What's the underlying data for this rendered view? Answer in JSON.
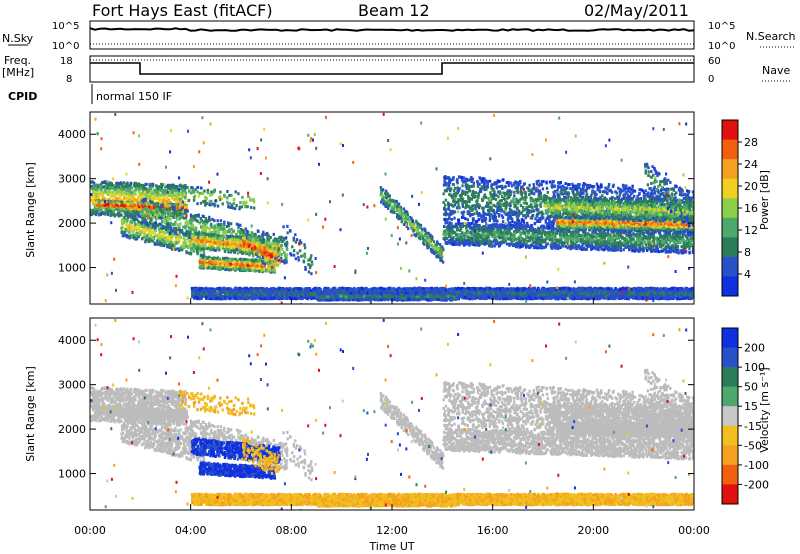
{
  "header": {
    "station": "Fort Hays East (fitACF)",
    "beam": "Beam 12",
    "date": "02/May/2011"
  },
  "panels": {
    "nsky_label": "N.Sky",
    "nsky_ticks": [
      "10^5",
      "10^0"
    ],
    "nsearch_label": "N.Search",
    "freq_label_1": "Freq.",
    "freq_label_2": "[MHz]",
    "freq_ticks": [
      "18",
      "8"
    ],
    "nave_ticks": [
      "60",
      "0"
    ],
    "nave_label": "Nave",
    "cpid_label": "CPID",
    "cpid_value": "normal 150 IF"
  },
  "colors": {
    "power_scale": [
      "#1030e0",
      "#2850c8",
      "#2e7d5a",
      "#4ea86b",
      "#8ccf4a",
      "#f0d020",
      "#f5a020",
      "#f06010",
      "#e01010"
    ],
    "velocity_scale": [
      "#1030e0",
      "#2850c8",
      "#2e7d5a",
      "#4ea86b",
      "#c8c8c8",
      "#f0c020",
      "#f5a020",
      "#f06010",
      "#e01010"
    ],
    "ground_scatter": "#bcbcbc"
  },
  "chart_data": [
    {
      "type": "heatmap",
      "name": "power",
      "xlabel": "",
      "ylabel": "Slant Range [km]",
      "x_unit_hours": [
        0,
        24
      ],
      "ylim": [
        180,
        4500
      ],
      "yticks": [
        "1000",
        "2000",
        "3000",
        "4000"
      ],
      "colorbar_label": "Power [dB]",
      "colorbar_ticks": [
        "4",
        "8",
        "12",
        "16",
        "20",
        "24",
        "28"
      ],
      "colorbar_range": [
        0,
        32
      ]
    },
    {
      "type": "heatmap",
      "name": "velocity",
      "xlabel": "Time UT",
      "ylabel": "Slant Range [km]",
      "x_unit_hours": [
        0,
        24
      ],
      "ylim": [
        180,
        4500
      ],
      "yticks": [
        "1000",
        "2000",
        "3000",
        "4000"
      ],
      "xticks": [
        "00:00",
        "04:00",
        "08:00",
        "12:00",
        "16:00",
        "20:00",
        "00:00"
      ],
      "colorbar_label": "Velocity [m s⁻¹]",
      "colorbar_ticks": [
        "200",
        "100",
        "50",
        "15",
        "-15",
        "-50",
        "-100",
        "-200"
      ]
    }
  ],
  "scatter_regions": [
    {
      "id": "early_band",
      "t0": 0.0,
      "t1": 4.0,
      "r_center": 2600,
      "r_width": 500,
      "power": 20,
      "vel_class": "ground"
    },
    {
      "id": "early_arc",
      "t0": 1.5,
      "t1": 7.5,
      "r_center": 1700,
      "r_width": 400,
      "power": 18,
      "vel_class": "pos"
    },
    {
      "id": "mid_arc",
      "t0": 3.5,
      "t1": 7.5,
      "r_center": 1200,
      "r_width": 250,
      "power": 22,
      "vel_class": "blue"
    },
    {
      "id": "evening_band",
      "t0": 14.0,
      "t1": 24.0,
      "r_center": 2000,
      "r_width": 500,
      "power": 18,
      "vel_class": "ground"
    }
  ]
}
